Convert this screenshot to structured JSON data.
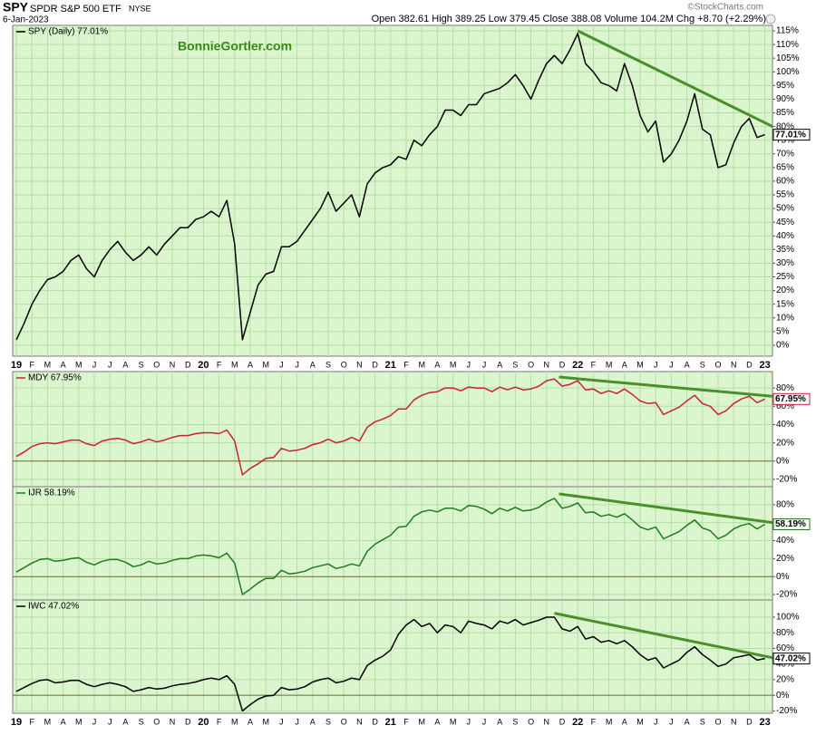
{
  "header": {
    "symbol": "SPY",
    "name": "SPDR S&P 500 ETF",
    "exchange": "NYSE",
    "date": "6-Jan-2023",
    "quote": "Open 382.61 High 389.25 Low 379.45 Close 388.08 Volume 104.2M Chg +8.70 (+2.29%)",
    "source": "©StockCharts.com"
  },
  "chart_data": [
    {
      "type": "line",
      "annotation": "BonnieGortler.com",
      "categories": [
        "19",
        null,
        "F",
        null,
        "M",
        null,
        "A",
        null,
        "M",
        null,
        "J",
        null,
        "J",
        null,
        "A",
        null,
        "S",
        null,
        "O",
        null,
        "N",
        null,
        "D",
        null,
        "20",
        null,
        "F",
        null,
        "M",
        null,
        "A",
        null,
        "M",
        null,
        "J",
        null,
        "J",
        null,
        "A",
        null,
        "S",
        null,
        "O",
        null,
        "N",
        null,
        "D",
        null,
        "21",
        null,
        "F",
        null,
        "M",
        null,
        "A",
        null,
        "M",
        null,
        "J",
        null,
        "J",
        null,
        "A",
        null,
        "S",
        null,
        "O",
        null,
        "N",
        null,
        "D",
        null,
        "22",
        null,
        "F",
        null,
        "M",
        null,
        "A",
        null,
        "M",
        null,
        "J",
        null,
        "J",
        null,
        "A",
        null,
        "S",
        null,
        "O",
        null,
        "N",
        null,
        "D",
        null,
        "23"
      ],
      "series": [
        {
          "name": "SPY (Daily) 77.01%",
          "color": "#000000",
          "last_label": "77.01%",
          "values": [
            2,
            8,
            15,
            20,
            24,
            25,
            27,
            31,
            33,
            28,
            25,
            31,
            35,
            38,
            34,
            31,
            33,
            36,
            33,
            37,
            40,
            43,
            43,
            46,
            47,
            49,
            47,
            53,
            37,
            2,
            12,
            22,
            26,
            27,
            36,
            36,
            38,
            42,
            46,
            50,
            56,
            49,
            52,
            55,
            47,
            59,
            63,
            65,
            66,
            69,
            68,
            75,
            73,
            77,
            80,
            86,
            86,
            84,
            88,
            88,
            92,
            93,
            94,
            96,
            99,
            95,
            90,
            97,
            103,
            106,
            103,
            108,
            114,
            103,
            100,
            96,
            95,
            93,
            103,
            95,
            84,
            78,
            82,
            67,
            70,
            75,
            82,
            92,
            79,
            77,
            65,
            66,
            74,
            80,
            83,
            76,
            77.01
          ]
        }
      ],
      "ylim": [
        -4,
        117
      ],
      "yticks": [
        {
          "value": 0,
          "label": "0%"
        },
        {
          "value": 5,
          "label": "5%"
        },
        {
          "value": 10,
          "label": "10%"
        },
        {
          "value": 15,
          "label": "15%"
        },
        {
          "value": 20,
          "label": "20%"
        },
        {
          "value": 25,
          "label": "25%"
        },
        {
          "value": 30,
          "label": "30%"
        },
        {
          "value": 35,
          "label": "35%"
        },
        {
          "value": 40,
          "label": "40%"
        },
        {
          "value": 45,
          "label": "45%"
        },
        {
          "value": 50,
          "label": "50%"
        },
        {
          "value": 55,
          "label": "55%"
        },
        {
          "value": 60,
          "label": "60%"
        },
        {
          "value": 65,
          "label": "65%"
        },
        {
          "value": 70,
          "label": "70%"
        },
        {
          "value": 75,
          "label": "75%"
        },
        {
          "value": 80,
          "label": "80%"
        },
        {
          "value": 85,
          "label": "85%"
        },
        {
          "value": 90,
          "label": "90%"
        },
        {
          "value": 95,
          "label": "95%"
        },
        {
          "value": 100,
          "label": "100%"
        },
        {
          "value": 105,
          "label": "105%"
        },
        {
          "value": 110,
          "label": "110%"
        },
        {
          "value": 115,
          "label": "115%"
        }
      ],
      "grid": true,
      "zero_line": false,
      "trendline": {
        "color": "#4a8f2a",
        "x": [
          72,
          97
        ],
        "values": [
          115,
          80
        ]
      }
    },
    {
      "type": "line",
      "series": [
        {
          "name": "MDY 67.95%",
          "color": "#cc1f3a",
          "last_label": "67.95%",
          "values": [
            5,
            10,
            16,
            19,
            20,
            19,
            21,
            23,
            23,
            19,
            17,
            22,
            24,
            25,
            23,
            19,
            21,
            24,
            21,
            23,
            26,
            28,
            28,
            30,
            31,
            31,
            30,
            34,
            22,
            -15,
            -8,
            -3,
            3,
            4,
            14,
            11,
            12,
            14,
            18,
            20,
            24,
            20,
            22,
            26,
            22,
            37,
            43,
            46,
            50,
            57,
            57,
            67,
            72,
            75,
            76,
            80,
            80,
            77,
            81,
            80,
            80,
            76,
            81,
            78,
            81,
            78,
            79,
            82,
            88,
            90,
            82,
            84,
            88,
            78,
            79,
            74,
            77,
            74,
            79,
            73,
            66,
            63,
            64,
            51,
            55,
            59,
            66,
            72,
            63,
            60,
            51,
            55,
            63,
            68,
            71,
            64,
            67.95
          ]
        }
      ],
      "ylim": [
        -28,
        98
      ],
      "yticks": [
        {
          "value": -20,
          "label": "-20%"
        },
        {
          "value": 0,
          "label": "0%"
        },
        {
          "value": 20,
          "label": "20%"
        },
        {
          "value": 40,
          "label": "40%"
        },
        {
          "value": 60,
          "label": "60%"
        },
        {
          "value": 80,
          "label": "80%"
        }
      ],
      "grid": true,
      "zero_line": true,
      "trendline": {
        "color": "#4a8f2a",
        "x": [
          69.6,
          97
        ],
        "values": [
          92,
          71
        ]
      }
    },
    {
      "type": "line",
      "series": [
        {
          "name": "IJR 58.19%",
          "color": "#1f7a1f",
          "last_label": "58.19%",
          "values": [
            5,
            10,
            15,
            19,
            20,
            17,
            18,
            20,
            21,
            16,
            13,
            17,
            19,
            19,
            16,
            11,
            13,
            17,
            14,
            15,
            18,
            20,
            20,
            23,
            24,
            23,
            21,
            26,
            15,
            -20,
            -14,
            -7,
            -2,
            -2,
            7,
            3,
            4,
            6,
            10,
            12,
            14,
            9,
            11,
            14,
            12,
            28,
            36,
            41,
            46,
            55,
            56,
            67,
            72,
            74,
            72,
            76,
            76,
            73,
            79,
            78,
            75,
            70,
            76,
            73,
            77,
            73,
            74,
            77,
            83,
            87,
            76,
            78,
            82,
            71,
            72,
            67,
            69,
            66,
            70,
            63,
            55,
            52,
            55,
            42,
            46,
            50,
            57,
            63,
            54,
            51,
            42,
            46,
            53,
            57,
            59,
            53,
            58.19
          ]
        }
      ],
      "ylim": [
        -26,
        100
      ],
      "yticks": [
        {
          "value": -20,
          "label": "-20%"
        },
        {
          "value": 0,
          "label": "0%"
        },
        {
          "value": 20,
          "label": "20%"
        },
        {
          "value": 40,
          "label": "40%"
        },
        {
          "value": 60,
          "label": "60%"
        },
        {
          "value": 80,
          "label": "80%"
        }
      ],
      "grid": true,
      "zero_line": true,
      "trendline": {
        "color": "#4a8f2a",
        "x": [
          69.6,
          97
        ],
        "values": [
          92,
          60
        ]
      }
    },
    {
      "type": "line",
      "categories": [
        "19",
        null,
        "F",
        null,
        "M",
        null,
        "A",
        null,
        "M",
        null,
        "J",
        null,
        "J",
        null,
        "A",
        null,
        "S",
        null,
        "O",
        null,
        "N",
        null,
        "D",
        null,
        "20",
        null,
        "F",
        null,
        "M",
        null,
        "A",
        null,
        "M",
        null,
        "J",
        null,
        "J",
        null,
        "A",
        null,
        "S",
        null,
        "O",
        null,
        "N",
        null,
        "D",
        null,
        "21",
        null,
        "F",
        null,
        "M",
        null,
        "A",
        null,
        "M",
        null,
        "J",
        null,
        "J",
        null,
        "A",
        null,
        "S",
        null,
        "O",
        null,
        "N",
        null,
        "D",
        null,
        "22",
        null,
        "F",
        null,
        "M",
        null,
        "A",
        null,
        "M",
        null,
        "J",
        null,
        "J",
        null,
        "A",
        null,
        "S",
        null,
        "O",
        null,
        "N",
        null,
        "D",
        null,
        "23"
      ],
      "series": [
        {
          "name": "IWC 47.02%",
          "color": "#000000",
          "last_label": "47.02%",
          "values": [
            5,
            10,
            15,
            19,
            20,
            16,
            17,
            19,
            19,
            14,
            11,
            14,
            16,
            14,
            11,
            5,
            7,
            10,
            8,
            9,
            12,
            14,
            15,
            17,
            20,
            22,
            20,
            25,
            14,
            -20,
            -12,
            -5,
            -1,
            0,
            10,
            7,
            8,
            11,
            17,
            20,
            22,
            16,
            18,
            22,
            20,
            38,
            45,
            50,
            58,
            78,
            90,
            97,
            88,
            92,
            80,
            90,
            88,
            80,
            95,
            92,
            90,
            85,
            95,
            92,
            97,
            90,
            93,
            96,
            100,
            100,
            85,
            82,
            88,
            72,
            75,
            68,
            70,
            66,
            70,
            62,
            52,
            45,
            48,
            35,
            40,
            45,
            55,
            62,
            52,
            45,
            37,
            40,
            48,
            50,
            52,
            45,
            47.02
          ]
        }
      ],
      "ylim": [
        -23,
        122
      ],
      "yticks": [
        {
          "value": -20,
          "label": "-20%"
        },
        {
          "value": 0,
          "label": "0%"
        },
        {
          "value": 20,
          "label": "20%"
        },
        {
          "value": 40,
          "label": "40%"
        },
        {
          "value": 60,
          "label": "60%"
        },
        {
          "value": 80,
          "label": "80%"
        },
        {
          "value": 100,
          "label": "100%"
        }
      ],
      "grid": true,
      "zero_line": true,
      "trendline": {
        "color": "#4a8f2a",
        "x": [
          69,
          97
        ],
        "values": [
          105,
          48
        ]
      }
    }
  ]
}
